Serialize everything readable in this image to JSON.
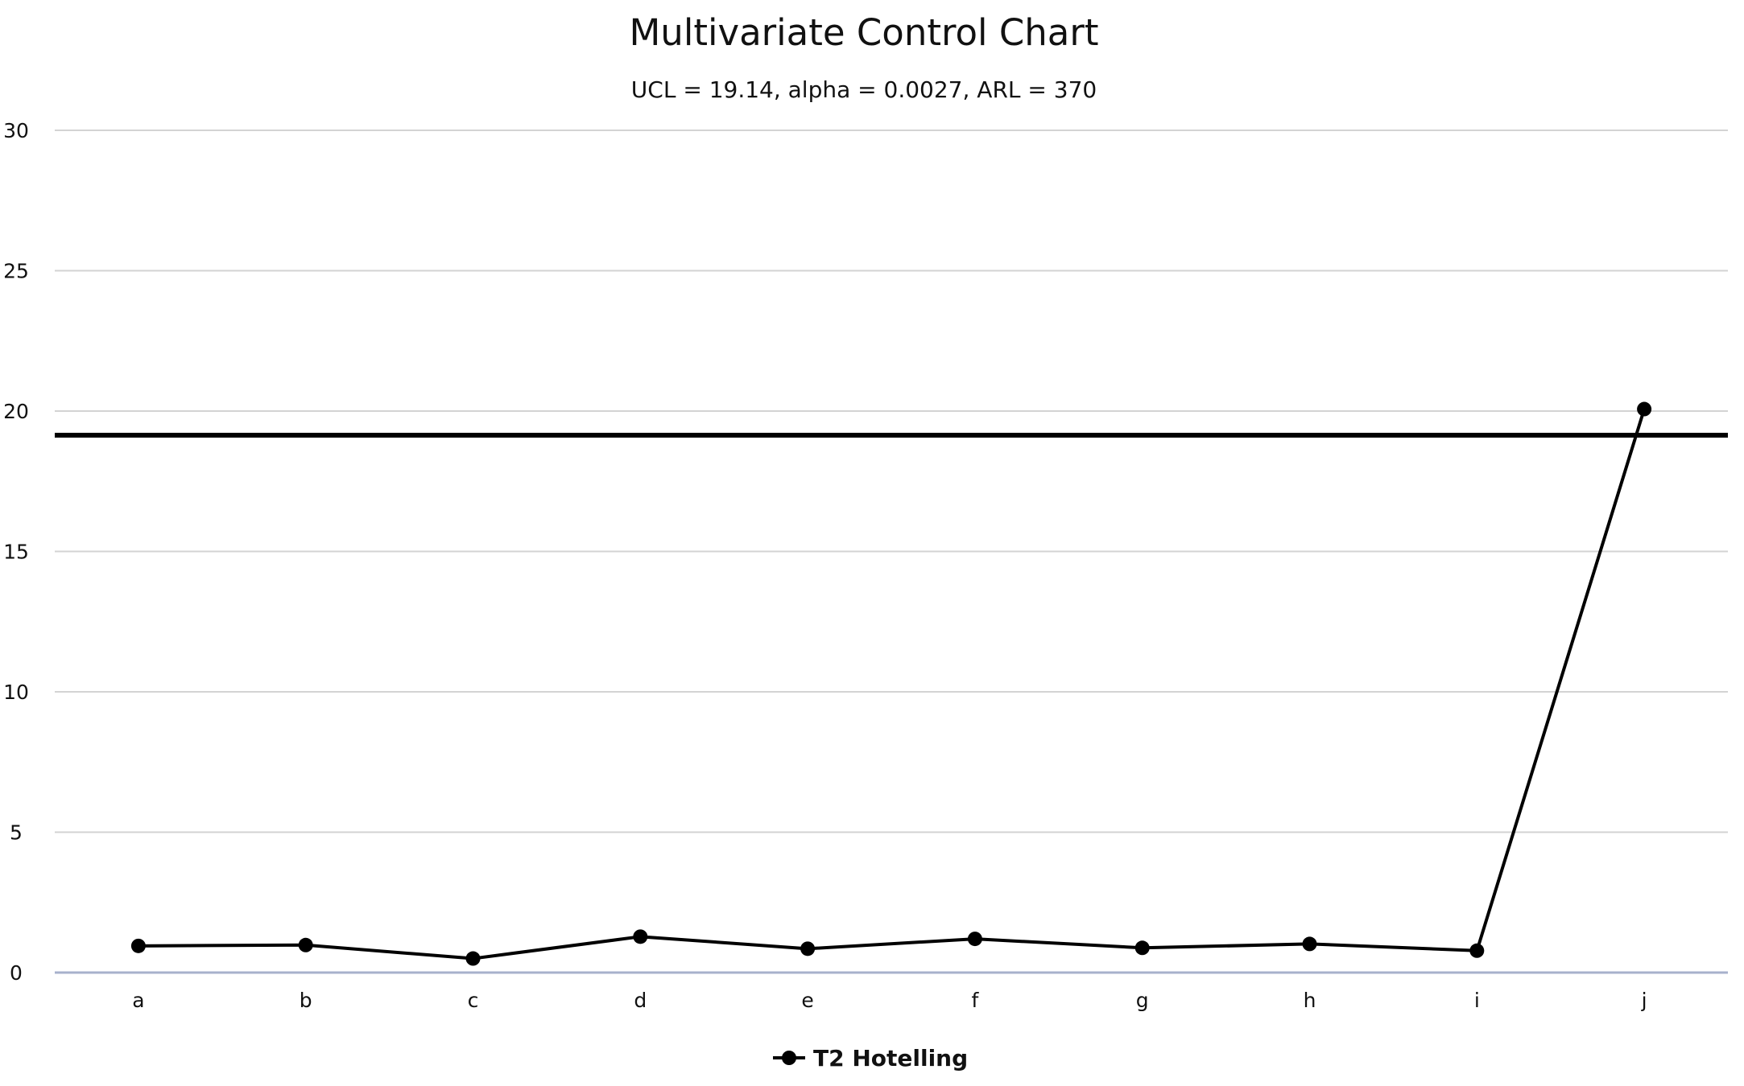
{
  "chart_data": {
    "type": "line",
    "title": "Multivariate Control Chart",
    "subtitle": "UCL = 19.14, alpha = 0.0027, ARL = 370",
    "xlabel": "",
    "ylabel": "",
    "categories": [
      "a",
      "b",
      "c",
      "d",
      "e",
      "f",
      "g",
      "h",
      "i",
      "j"
    ],
    "series": [
      {
        "name": "T2 Hotelling",
        "values": [
          0.95,
          0.98,
          0.5,
          1.28,
          0.85,
          1.2,
          0.88,
          1.02,
          0.78,
          20.07
        ],
        "color": "#000000"
      }
    ],
    "control_limit": {
      "value": 19.14,
      "color": "#000000"
    },
    "yticks": [
      0,
      5,
      10,
      15,
      20,
      25,
      30
    ],
    "ylim": [
      0,
      30
    ],
    "grid": true,
    "gridline_color": "#d3d3d3",
    "axis_color": "#a7b1cc",
    "legend": {
      "position": "bottom-center",
      "entries": [
        "T2 Hotelling"
      ]
    }
  }
}
